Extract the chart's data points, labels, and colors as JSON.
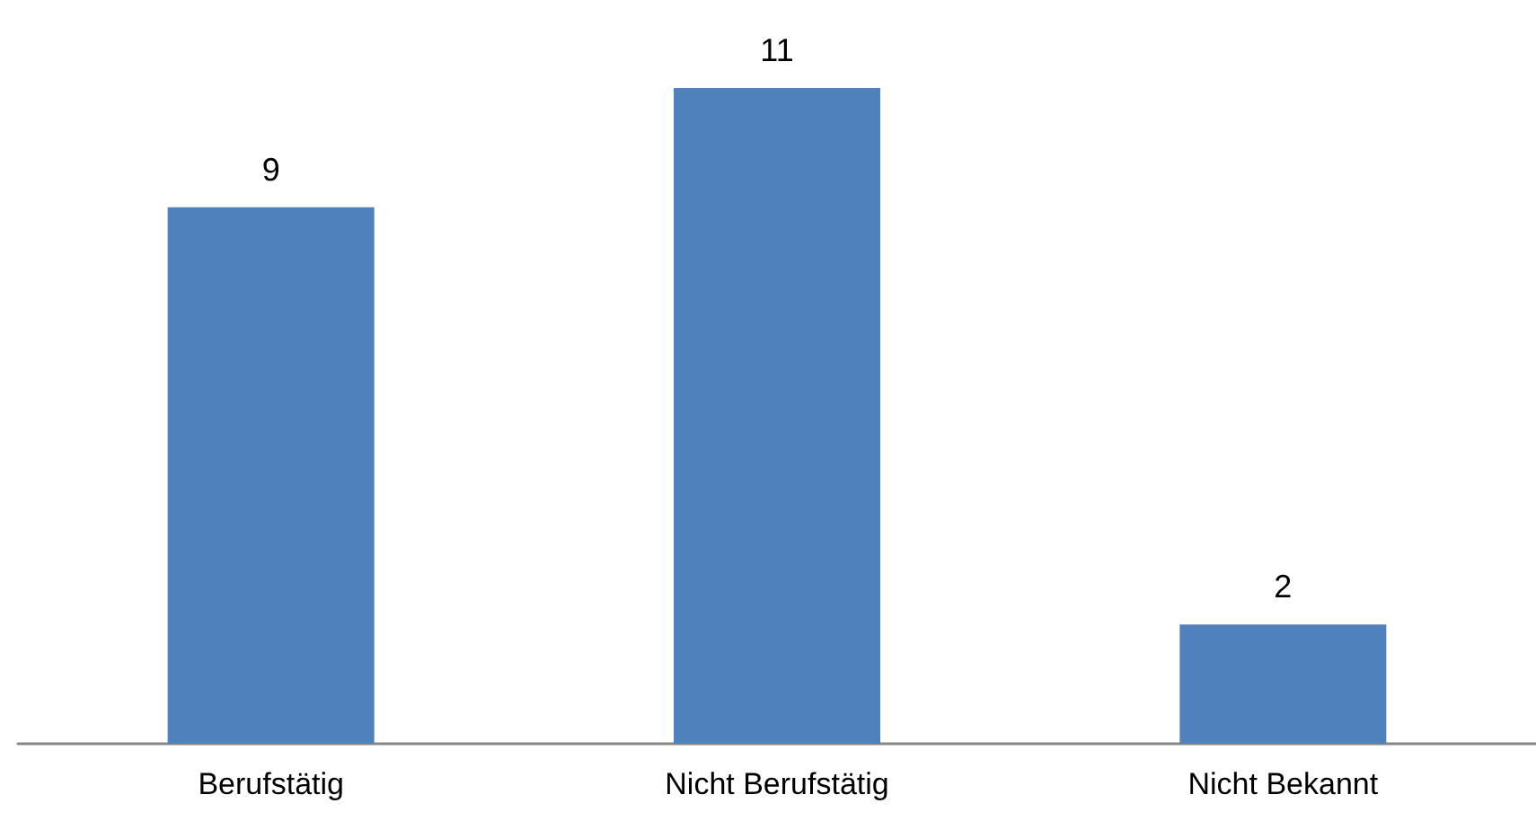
{
  "chart_data": {
    "type": "bar",
    "categories": [
      "Berufstätig",
      "Nicht Berufstätig",
      "Nicht Bekannt"
    ],
    "series": [
      {
        "color": "#4f81bd",
        "values": [
          9,
          11,
          2
        ]
      }
    ],
    "data_labels": true,
    "grid": false
  }
}
